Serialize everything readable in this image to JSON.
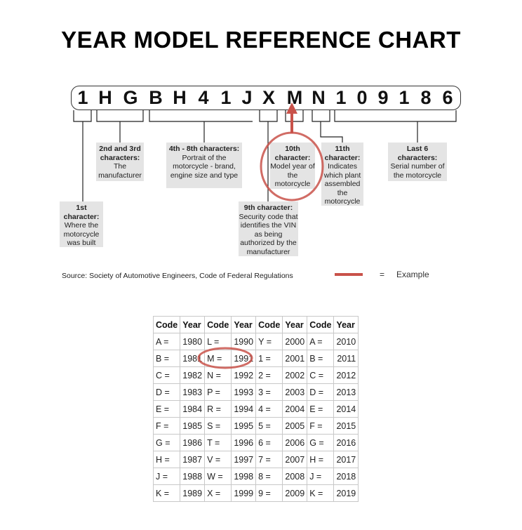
{
  "title": "YEAR MODEL REFERENCE CHART",
  "vin": [
    "1",
    "H",
    "G",
    "B",
    "H",
    "4",
    "1",
    "J",
    "X",
    "M",
    "N",
    "1",
    "0",
    "9",
    "1",
    "8",
    "6"
  ],
  "labels": {
    "first": {
      "head": "1st character:",
      "body": "Where the motorcycle was built"
    },
    "second": {
      "head": "2nd and 3rd characters:",
      "body": "The manufacturer"
    },
    "fourth": {
      "head": "4th - 8th characters:",
      "body": "Portrait of the motorcycle - brand, engine size and type"
    },
    "ninth": {
      "head": "9th character:",
      "body": "Security code that identifies the VIN as being authorized by the manufacturer"
    },
    "tenth": {
      "head": "10th character:",
      "body": "Model year of the motorcycle"
    },
    "eleventh": {
      "head": "11th character:",
      "body": "Indicates which plant assembled the motorcycle"
    },
    "last": {
      "head": "Last 6 characters:",
      "body": "Serial number of the motorcycle"
    }
  },
  "source": "Source:  Society of Automotive Engineers, Code of Federal Regulations",
  "legend": {
    "equals": "=",
    "example": "Example",
    "color": "#c9524a"
  },
  "table": {
    "headers": [
      "Code",
      "Year",
      "Code",
      "Year",
      "Code",
      "Year",
      "Code",
      "Year"
    ],
    "rows": [
      [
        "A =",
        "1980",
        "L =",
        "1990",
        "Y =",
        "2000",
        "A =",
        "2010"
      ],
      [
        "B =",
        "1981",
        "M =",
        "1991",
        "1 =",
        "2001",
        "B =",
        "2011"
      ],
      [
        "C =",
        "1982",
        "N =",
        "1992",
        "2 =",
        "2002",
        "C =",
        "2012"
      ],
      [
        "D =",
        "1983",
        "P =",
        "1993",
        "3 =",
        "2003",
        "D =",
        "2013"
      ],
      [
        "E =",
        "1984",
        "R =",
        "1994",
        "4 =",
        "2004",
        "E =",
        "2014"
      ],
      [
        "F =",
        "1985",
        "S =",
        "1995",
        "5 =",
        "2005",
        "F =",
        "2015"
      ],
      [
        "G =",
        "1986",
        "T =",
        "1996",
        "6 =",
        "2006",
        "G =",
        "2016"
      ],
      [
        "H =",
        "1987",
        "V =",
        "1997",
        "7 =",
        "2007",
        "H =",
        "2017"
      ],
      [
        "J =",
        "1988",
        "W =",
        "1998",
        "8 =",
        "2008",
        "J =",
        "2018"
      ],
      [
        "K =",
        "1989",
        "X =",
        "1999",
        "9 =",
        "2009",
        "K =",
        "2019"
      ]
    ]
  }
}
